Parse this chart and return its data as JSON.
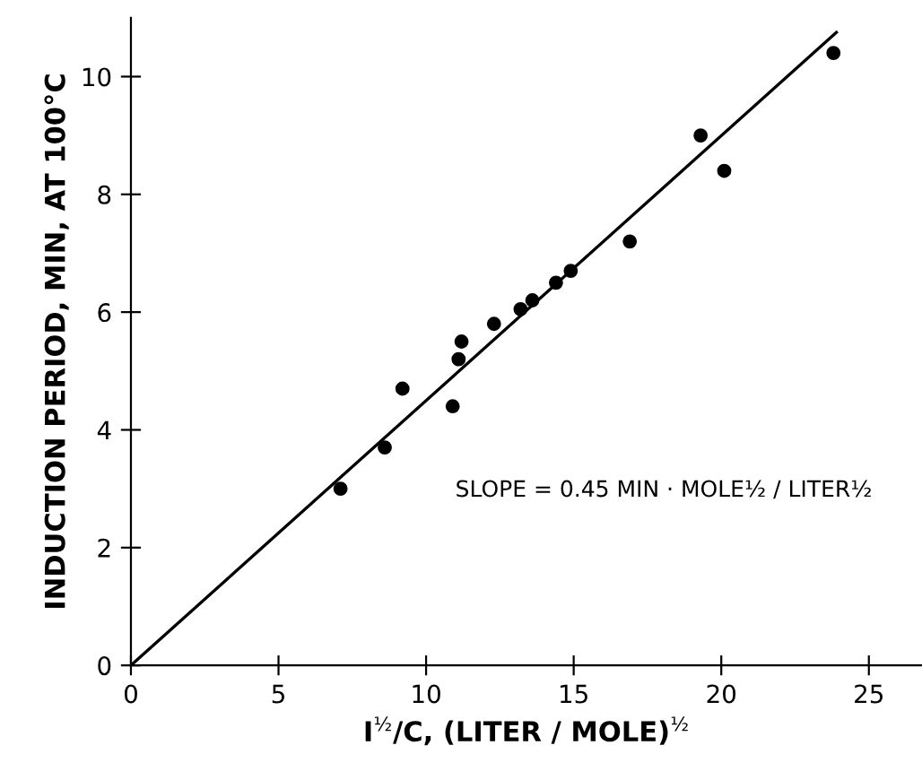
{
  "chart_data": {
    "type": "scatter",
    "xlabel": "I$^{½}$/C, (LITER / MOLE)$^{½}$",
    "ylabel": "INDUCTION PERIOD, MIN, AT 100°C",
    "xlim": [
      0,
      26.8
    ],
    "ylim": [
      0,
      11
    ],
    "xticks": [
      0,
      5,
      10,
      15,
      20,
      25
    ],
    "yticks": [
      0,
      2,
      4,
      6,
      8,
      10
    ],
    "grid": false,
    "series": [
      {
        "color": "#000000",
        "marker": "circle",
        "x": [
          7.1,
          8.6,
          9.2,
          10.9,
          11.1,
          11.2,
          12.3,
          13.2,
          13.6,
          14.4,
          14.9,
          16.9,
          19.3,
          20.1,
          23.8
        ],
        "values": [
          3.0,
          3.7,
          4.7,
          4.4,
          5.2,
          5.5,
          5.8,
          6.05,
          6.2,
          6.5,
          6.7,
          7.2,
          9.0,
          8.4,
          10.4
        ]
      },
      {
        "type": "line",
        "color": "#000000",
        "line_style": "solid",
        "x": [
          0,
          23.9
        ],
        "values": [
          0,
          10.75
        ]
      }
    ],
    "annotations": [
      "SLOPE = 0.45 MIN · MOLE½ / LITER½"
    ]
  }
}
